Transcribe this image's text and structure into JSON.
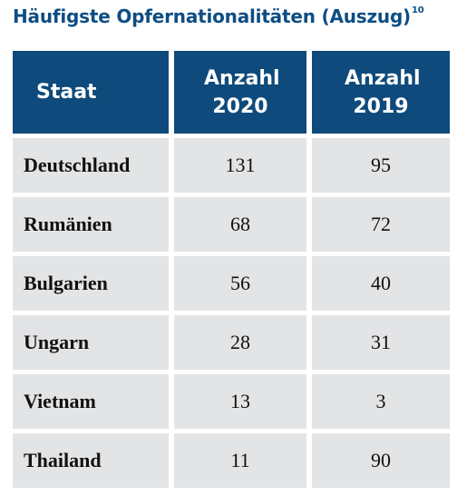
{
  "title": "Häufigste Opfernationalitäten (Auszug)",
  "footnote": "10",
  "table": {
    "headers": [
      "Staat",
      "Anzahl 2020",
      "Anzahl 2019"
    ],
    "rows": [
      {
        "staat": "Deutschland",
        "y2020": "131",
        "y2019": "95"
      },
      {
        "staat": "Rumänien",
        "y2020": "68",
        "y2019": "72"
      },
      {
        "staat": "Bulgarien",
        "y2020": "56",
        "y2019": "40"
      },
      {
        "staat": "Ungarn",
        "y2020": "28",
        "y2019": "31"
      },
      {
        "staat": "Vietnam",
        "y2020": "13",
        "y2019": "3"
      },
      {
        "staat": "Thailand",
        "y2020": "11",
        "y2019": "90"
      }
    ]
  },
  "colors": {
    "header_bg": "#0e4a7b",
    "title": "#0e4d84",
    "cell_bg": "#e3e4e6"
  }
}
